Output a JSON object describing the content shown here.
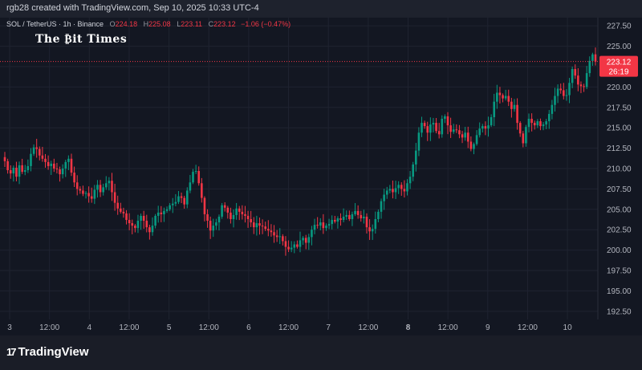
{
  "header": {
    "credit": "rgb28 created with TradingView.com, Sep 10, 2025 10:33 UTC-4"
  },
  "legend": {
    "symbol": "SOL / TetherUS · 1h · Binance",
    "o_label": "O",
    "o_value": "224.18",
    "h_label": "H",
    "h_value": "225.08",
    "l_label": "L",
    "l_value": "223.11",
    "c_label": "C",
    "c_value": "223.12",
    "change": "−1.06 (−0.47%)"
  },
  "watermark": "The ₿it Times",
  "brand": {
    "logo": "17",
    "name": "TradingView"
  },
  "chart_data": {
    "type": "candlestick",
    "symbol": "SOL / TetherUS",
    "interval": "1h",
    "exchange": "Binance",
    "ylim": [
      191.5,
      228.5
    ],
    "y_ticks": [
      "227.50",
      "225.00",
      "222.50",
      "220.00",
      "217.50",
      "215.00",
      "212.50",
      "210.00",
      "207.50",
      "205.00",
      "202.50",
      "200.00",
      "197.50",
      "195.00",
      "192.50"
    ],
    "x_ticks": [
      "3",
      "12:00",
      "4",
      "12:00",
      "5",
      "12:00",
      "6",
      "12:00",
      "7",
      "12:00",
      "8",
      "12:00",
      "9",
      "12:00",
      "10"
    ],
    "last_price": "223.12",
    "countdown": "26:19",
    "close_approx": [
      210.9,
      209.8,
      209.4,
      210.1,
      209.0,
      210.4,
      209.6,
      209.8,
      210.3,
      211.8,
      212.6,
      212.4,
      211.6,
      211.2,
      210.8,
      210.3,
      210.6,
      210.0,
      209.9,
      209.3,
      210.0,
      210.8,
      211.2,
      209.5,
      208.3,
      207.5,
      207.3,
      206.9,
      207.0,
      206.6,
      206.3,
      207.4,
      208.0,
      207.1,
      207.7,
      208.2,
      208.5,
      207.1,
      205.8,
      205.1,
      204.7,
      204.5,
      203.7,
      203.3,
      203.0,
      202.7,
      203.6,
      204.2,
      203.6,
      202.8,
      202.2,
      203.0,
      204.2,
      204.6,
      204.4,
      204.8,
      205.0,
      205.5,
      205.7,
      205.9,
      206.6,
      206.4,
      205.6,
      207.3,
      208.3,
      209.6,
      209.7,
      208.2,
      206.4,
      204.4,
      203.6,
      202.4,
      203.0,
      203.4,
      204.1,
      205.5,
      205.2,
      204.6,
      203.8,
      204.3,
      205.1,
      204.7,
      204.4,
      204.2,
      203.8,
      203.4,
      202.8,
      203.3,
      203.0,
      202.9,
      202.6,
      202.4,
      202.2,
      201.8,
      201.6,
      201.7,
      201.1,
      200.4,
      200.1,
      200.3,
      200.7,
      200.4,
      201.2,
      201.5,
      200.9,
      201.6,
      202.5,
      203.1,
      203.0,
      203.4,
      202.7,
      203.0,
      203.2,
      203.7,
      203.5,
      203.9,
      203.7,
      204.1,
      204.3,
      203.8,
      204.4,
      204.8,
      204.3,
      203.9,
      204.1,
      202.8,
      202.3,
      202.6,
      203.8,
      204.7,
      206.0,
      206.8,
      207.3,
      207.5,
      207.1,
      207.6,
      208.0,
      207.5,
      207.2,
      208.2,
      209.0,
      210.5,
      212.2,
      214.4,
      215.6,
      215.2,
      214.4,
      215.4,
      215.6,
      214.6,
      214.2,
      216.1,
      216.4,
      215.3,
      214.5,
      214.8,
      214.7,
      214.2,
      213.8,
      214.4,
      213.3,
      212.4,
      213.0,
      214.1,
      214.9,
      215.2,
      214.9,
      215.3,
      216.3,
      218.2,
      219.3,
      219.0,
      218.6,
      218.9,
      218.2,
      217.3,
      217.8,
      215.6,
      214.3,
      213.1,
      215.1,
      216.1,
      215.6,
      215.3,
      215.8,
      215.2,
      215.4,
      215.8,
      216.7,
      217.8,
      218.9,
      219.8,
      219.6,
      218.9,
      219.0,
      220.5,
      222.2,
      221.4,
      220.3,
      220.1,
      220.0,
      221.7,
      223.2,
      224.0,
      223.12
    ]
  }
}
